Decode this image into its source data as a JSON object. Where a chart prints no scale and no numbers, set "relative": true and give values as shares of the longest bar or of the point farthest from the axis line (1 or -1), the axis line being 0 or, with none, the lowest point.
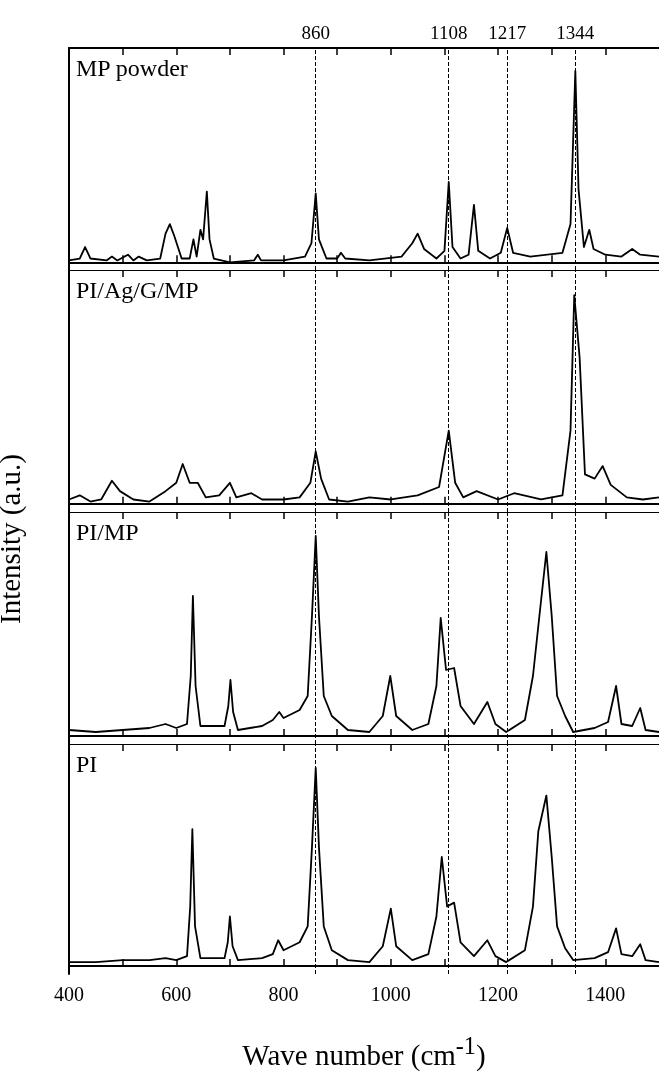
{
  "chart_data": [
    {
      "type": "line",
      "relative": true,
      "tick_labels": false,
      "xlim": [
        400,
        1500
      ],
      "xticks": [
        400,
        {
          "value": 500,
          "label": null
        },
        600,
        {
          "value": 700,
          "label": null
        },
        800,
        {
          "value": 900,
          "label": null
        },
        1000,
        {
          "value": 1100,
          "label": null
        },
        1200,
        {
          "value": 1300,
          "label": null
        },
        1400
      ],
      "ref_lines": [
        {
          "axis": "x",
          "value": 860,
          "label": "860",
          "line_style": "dashed",
          "color": "#000000"
        },
        {
          "axis": "x",
          "value": 1108,
          "label": "1108",
          "line_style": "dashed",
          "color": "#000000"
        },
        {
          "axis": "x",
          "value": 1217,
          "label": "1217",
          "line_style": "dashed",
          "color": "#000000"
        },
        {
          "axis": "x",
          "value": 1344,
          "label": "1344",
          "line_style": "dashed",
          "color": "#000000"
        }
      ],
      "x": [
        400,
        420,
        430,
        440,
        470,
        480,
        490,
        510,
        520,
        530,
        545,
        570,
        580,
        588,
        596,
        610,
        625,
        632,
        638,
        645,
        650,
        657,
        662,
        670,
        700,
        745,
        752,
        758,
        800,
        840,
        852,
        860,
        866,
        880,
        900,
        907,
        915,
        960,
        1020,
        1040,
        1050,
        1062,
        1085,
        1100,
        1108,
        1115,
        1130,
        1145,
        1155,
        1163,
        1185,
        1205,
        1217,
        1228,
        1260,
        1320,
        1335,
        1344,
        1350,
        1360,
        1370,
        1378,
        1400,
        1430,
        1450,
        1465,
        1500
      ],
      "series": [
        {
          "name": "MP powder",
          "color": "#000000",
          "values": [
            0.01,
            0.02,
            0.08,
            0.02,
            0.01,
            0.03,
            0.01,
            0.04,
            0.01,
            0.03,
            0.01,
            0.02,
            0.15,
            0.2,
            0.14,
            0.02,
            0.02,
            0.12,
            0.03,
            0.17,
            0.12,
            0.37,
            0.12,
            0.02,
            0.0,
            0.01,
            0.04,
            0.01,
            0.01,
            0.03,
            0.1,
            0.36,
            0.12,
            0.02,
            0.02,
            0.05,
            0.02,
            0.01,
            0.03,
            0.1,
            0.15,
            0.07,
            0.02,
            0.06,
            0.42,
            0.08,
            0.02,
            0.04,
            0.3,
            0.06,
            0.02,
            0.05,
            0.18,
            0.05,
            0.03,
            0.05,
            0.2,
            1,
            0.38,
            0.08,
            0.17,
            0.07,
            0.04,
            0.03,
            0.07,
            0.04,
            0.03
          ]
        }
      ]
    },
    {
      "type": "line",
      "relative": true,
      "tick_labels": false,
      "xlim": [
        400,
        1500
      ],
      "xticks": [
        400,
        {
          "value": 500,
          "label": null
        },
        600,
        {
          "value": 700,
          "label": null
        },
        800,
        {
          "value": 900,
          "label": null
        },
        1000,
        {
          "value": 1100,
          "label": null
        },
        1200,
        {
          "value": 1300,
          "label": null
        },
        1400
      ],
      "ref_lines": [
        {
          "axis": "x",
          "value": 860,
          "line_style": "dashed",
          "color": "#000000"
        },
        {
          "axis": "x",
          "value": 1108,
          "line_style": "dashed",
          "color": "#000000"
        },
        {
          "axis": "x",
          "value": 1217,
          "line_style": "dashed",
          "color": "#000000"
        },
        {
          "axis": "x",
          "value": 1344,
          "line_style": "dashed",
          "color": "#000000"
        }
      ],
      "x": [
        400,
        420,
        440,
        460,
        480,
        495,
        520,
        550,
        580,
        600,
        612,
        625,
        640,
        655,
        680,
        700,
        712,
        740,
        760,
        800,
        830,
        850,
        860,
        870,
        885,
        920,
        960,
        1000,
        1050,
        1090,
        1108,
        1120,
        1135,
        1160,
        1200,
        1230,
        1280,
        1320,
        1335,
        1342,
        1352,
        1362,
        1380,
        1395,
        1410,
        1440,
        1470,
        1500
      ],
      "series": [
        {
          "name": "PI/Ag/G/MP",
          "color": "#000000",
          "values": [
            0.02,
            0.04,
            0.01,
            0.02,
            0.11,
            0.06,
            0.02,
            0.01,
            0.06,
            0.1,
            0.19,
            0.1,
            0.1,
            0.03,
            0.04,
            0.1,
            0.03,
            0.05,
            0.02,
            0.02,
            0.03,
            0.1,
            0.25,
            0.12,
            0.02,
            0.01,
            0.03,
            0.02,
            0.04,
            0.08,
            0.35,
            0.1,
            0.03,
            0.06,
            0.02,
            0.05,
            0.02,
            0.04,
            0.35,
            1,
            0.7,
            0.14,
            0.12,
            0.18,
            0.09,
            0.03,
            0.02,
            0.03
          ]
        }
      ]
    },
    {
      "type": "line",
      "relative": true,
      "tick_labels": false,
      "xlim": [
        400,
        1500
      ],
      "xticks": [
        400,
        {
          "value": 500,
          "label": null
        },
        600,
        {
          "value": 700,
          "label": null
        },
        800,
        {
          "value": 900,
          "label": null
        },
        1000,
        {
          "value": 1100,
          "label": null
        },
        1200,
        {
          "value": 1300,
          "label": null
        },
        1400
      ],
      "ref_lines": [
        {
          "axis": "x",
          "value": 860,
          "line_style": "dashed",
          "color": "#000000"
        },
        {
          "axis": "x",
          "value": 1108,
          "line_style": "dashed",
          "color": "#000000"
        },
        {
          "axis": "x",
          "value": 1217,
          "line_style": "dashed",
          "color": "#000000"
        },
        {
          "axis": "x",
          "value": 1344,
          "line_style": "dashed",
          "color": "#000000"
        }
      ],
      "x": [
        400,
        450,
        500,
        550,
        580,
        600,
        620,
        627,
        631,
        636,
        645,
        690,
        697,
        701,
        706,
        715,
        760,
        780,
        792,
        800,
        830,
        845,
        853,
        860,
        866,
        875,
        890,
        920,
        960,
        985,
        999,
        1010,
        1040,
        1070,
        1085,
        1093,
        1103,
        1118,
        1130,
        1155,
        1180,
        1195,
        1215,
        1250,
        1265,
        1277,
        1290,
        1300,
        1310,
        1325,
        1340,
        1380,
        1405,
        1420,
        1430,
        1450,
        1465,
        1475,
        1500
      ],
      "ylabel": "Intensity (a.u.)",
      "series": [
        {
          "name": "PI/MP",
          "color": "#000000",
          "values": [
            0.03,
            0.02,
            0.03,
            0.04,
            0.06,
            0.04,
            0.06,
            0.3,
            0.7,
            0.25,
            0.05,
            0.05,
            0.15,
            0.28,
            0.12,
            0.03,
            0.05,
            0.08,
            0.12,
            0.09,
            0.13,
            0.2,
            0.6,
            1,
            0.6,
            0.2,
            0.1,
            0.03,
            0.02,
            0.1,
            0.3,
            0.1,
            0.03,
            0.06,
            0.25,
            0.59,
            0.33,
            0.34,
            0.15,
            0.06,
            0.17,
            0.06,
            0.02,
            0.08,
            0.3,
            0.6,
            0.92,
            0.6,
            0.2,
            0.1,
            0.02,
            0.04,
            0.07,
            0.25,
            0.06,
            0.05,
            0.14,
            0.03,
            0.02
          ]
        }
      ]
    },
    {
      "type": "line",
      "relative": true,
      "tick_labels": "x",
      "xlabel": "Wave number (cm$^{-1}$)",
      "xlim": [
        400,
        1500
      ],
      "xticks": [
        400,
        {
          "value": 500,
          "label": null
        },
        600,
        {
          "value": 700,
          "label": null
        },
        800,
        {
          "value": 900,
          "label": null
        },
        1000,
        {
          "value": 1100,
          "label": null
        },
        1200,
        {
          "value": 1300,
          "label": null
        },
        1400
      ],
      "ref_lines": [
        {
          "axis": "x",
          "value": 860,
          "line_style": "dashed",
          "color": "#000000"
        },
        {
          "axis": "x",
          "value": 1108,
          "line_style": "dashed",
          "color": "#000000"
        },
        {
          "axis": "x",
          "value": 1217,
          "line_style": "dashed",
          "color": "#000000"
        },
        {
          "axis": "x",
          "value": 1344,
          "line_style": "dashed",
          "color": "#000000"
        }
      ],
      "x": [
        400,
        450,
        500,
        550,
        580,
        600,
        620,
        626,
        630,
        635,
        645,
        690,
        696,
        700,
        705,
        715,
        760,
        780,
        790,
        800,
        830,
        845,
        853,
        860,
        866,
        875,
        890,
        920,
        960,
        985,
        1000,
        1010,
        1040,
        1070,
        1085,
        1095,
        1105,
        1118,
        1130,
        1155,
        1180,
        1195,
        1215,
        1250,
        1265,
        1275,
        1290,
        1300,
        1310,
        1325,
        1340,
        1380,
        1405,
        1420,
        1430,
        1450,
        1465,
        1475,
        1500
      ],
      "series": [
        {
          "name": "PI",
          "color": "#000000",
          "values": [
            0.02,
            0.02,
            0.03,
            0.03,
            0.04,
            0.03,
            0.05,
            0.3,
            0.69,
            0.2,
            0.04,
            0.04,
            0.12,
            0.25,
            0.1,
            0.03,
            0.04,
            0.06,
            0.13,
            0.08,
            0.12,
            0.2,
            0.6,
            1,
            0.6,
            0.2,
            0.08,
            0.03,
            0.02,
            0.1,
            0.29,
            0.1,
            0.03,
            0.06,
            0.25,
            0.55,
            0.3,
            0.32,
            0.12,
            0.05,
            0.13,
            0.05,
            0.02,
            0.08,
            0.3,
            0.68,
            0.86,
            0.55,
            0.2,
            0.09,
            0.03,
            0.04,
            0.07,
            0.19,
            0.06,
            0.05,
            0.11,
            0.03,
            0.02
          ]
        }
      ]
    }
  ]
}
